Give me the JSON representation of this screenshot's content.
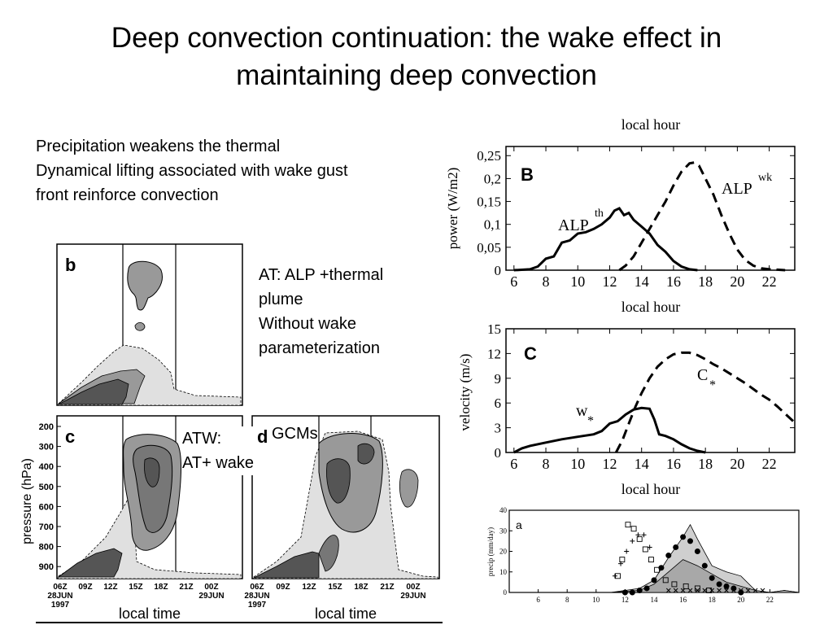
{
  "slide": {
    "title_line1": "Deep convection continuation: the wake effect in",
    "title_line2": "maintaining deep convection",
    "bullets": [
      "Precipitation weakens the thermal",
      "Dynamical lifting associated with wake gust",
      "front reinforce convection"
    ],
    "at_note": [
      "AT: ALP +thermal",
      "plume",
      "Without wake",
      "parameterization"
    ],
    "atw_note": [
      "ATW:",
      "AT+ wake"
    ],
    "gcms_note": "GCMs"
  },
  "colors": {
    "dark_fill": "#555555",
    "mid_fill": "#999999",
    "light_fill": "#d2d2d2",
    "ink": "#000000"
  },
  "chart_data": [
    {
      "id": "panel-b-cross-section",
      "type": "heatmap",
      "panel_label": "b"
    },
    {
      "id": "panel-c-cross-section",
      "type": "heatmap",
      "panel_label": "c",
      "ylabel": "pressure  (hPa)",
      "yticks": [
        "200",
        "300",
        "400",
        "500",
        "600",
        "700",
        "800",
        "900"
      ],
      "xticks": [
        "06Z",
        "09Z",
        "12Z",
        "15Z",
        "18Z",
        "21Z",
        "00Z"
      ],
      "date_start": [
        "28JUN",
        "1997"
      ],
      "date_end": "29JUN",
      "xlabel": "local time"
    },
    {
      "id": "panel-d-cross-section",
      "type": "heatmap",
      "panel_label": "d",
      "xticks": [
        "06Z",
        "09Z",
        "12Z",
        "15Z",
        "18Z",
        "21Z",
        "00Z"
      ],
      "date_start": [
        "28JUN",
        "1997"
      ],
      "date_end": "29JUN",
      "xlabel": "local time"
    },
    {
      "id": "panel-B-power",
      "type": "line",
      "panel_label": "B",
      "top_axis_label": "local hour",
      "xlabel": "local hour",
      "ylabel": "power (W/m2)",
      "xlim": [
        5.5,
        23.6
      ],
      "ylim": [
        0,
        0.27
      ],
      "xticks": [
        "6",
        "8",
        "10",
        "12",
        "14",
        "16",
        "18",
        "20",
        "22"
      ],
      "yticks": [
        "0",
        "0,05",
        "0,1",
        "0,15",
        "0,2",
        "0,25"
      ],
      "series": [
        {
          "name": "ALP th",
          "label_main": "ALP",
          "label_sup": "th",
          "dash": false,
          "x": [
            6,
            7,
            7.5,
            8,
            8.5,
            9,
            9.5,
            10,
            10.5,
            11,
            11.5,
            12,
            12.3,
            12.6,
            12.9,
            13.2,
            13.5,
            14,
            14.5,
            15,
            15.5,
            16,
            16.5,
            17,
            17.5
          ],
          "y": [
            0,
            0.002,
            0.008,
            0.025,
            0.03,
            0.06,
            0.065,
            0.08,
            0.083,
            0.09,
            0.1,
            0.115,
            0.13,
            0.135,
            0.12,
            0.125,
            0.11,
            0.095,
            0.08,
            0.055,
            0.04,
            0.02,
            0.008,
            0.002,
            0
          ]
        },
        {
          "name": "ALP wk",
          "label_main": "ALP",
          "label_sup": "wk",
          "dash": true,
          "x": [
            12.6,
            13,
            13.5,
            14,
            14.5,
            15,
            15.5,
            16,
            16.5,
            17,
            17.3,
            17.6,
            18,
            18.5,
            19,
            19.5,
            20,
            20.5,
            21,
            21.5,
            22,
            22.5,
            23
          ],
          "y": [
            0,
            0.01,
            0.03,
            0.06,
            0.09,
            0.12,
            0.15,
            0.185,
            0.215,
            0.233,
            0.235,
            0.228,
            0.2,
            0.165,
            0.12,
            0.08,
            0.045,
            0.022,
            0.01,
            0.004,
            0.002,
            0.001,
            0
          ]
        }
      ]
    },
    {
      "id": "panel-C-velocity",
      "type": "line",
      "panel_label": "C",
      "xlabel": "local hour",
      "ylabel": "velocity (m/s)",
      "xlim": [
        5.5,
        23.6
      ],
      "ylim": [
        0,
        15
      ],
      "xticks": [
        "6",
        "8",
        "10",
        "12",
        "14",
        "16",
        "18",
        "20",
        "22"
      ],
      "yticks": [
        "0",
        "3",
        "6",
        "9",
        "12",
        "15"
      ],
      "series": [
        {
          "name": "w*",
          "label_main": "w",
          "label_sub": "*",
          "dash": false,
          "x": [
            6,
            6.5,
            7,
            8,
            9,
            10,
            11,
            11.5,
            12,
            12.5,
            13,
            13.5,
            14,
            14.5,
            14.8,
            15.1,
            15.5,
            16,
            16.5,
            17,
            17.5,
            18
          ],
          "y": [
            0,
            0.5,
            0.8,
            1.2,
            1.6,
            1.9,
            2.2,
            2.6,
            3.5,
            3.8,
            4.6,
            5.2,
            5.4,
            5.3,
            4.0,
            2.2,
            2.0,
            1.6,
            1.0,
            0.5,
            0.2,
            0
          ]
        },
        {
          "name": "C*",
          "label_main": "C",
          "label_sub": "*",
          "dash": true,
          "x": [
            12.4,
            12.8,
            13.2,
            13.6,
            14,
            14.5,
            15,
            15.5,
            16,
            16.5,
            17,
            17.5,
            18,
            18.5,
            19,
            19.5,
            20,
            20.5,
            21,
            21.5,
            22,
            22.5,
            23,
            23.5
          ],
          "y": [
            0,
            1.5,
            3.5,
            5.5,
            7.2,
            9,
            10.4,
            11.3,
            11.9,
            12.1,
            12.1,
            11.8,
            11.3,
            10.7,
            10.2,
            9.6,
            9,
            8.4,
            7.7,
            7,
            6.4,
            5.6,
            4.7,
            3.8
          ]
        }
      ]
    },
    {
      "id": "panel-a-precip",
      "type": "line",
      "panel_label": "a",
      "ylabel": "precip (mm/day)",
      "xlim": [
        4,
        24
      ],
      "ylim": [
        0,
        40
      ],
      "xticks": [
        "6",
        "8",
        "10",
        "12",
        "14",
        "16",
        "18",
        "20",
        "22"
      ],
      "yticks": [
        "0",
        "10",
        "20",
        "30",
        "40"
      ],
      "area_upper": {
        "x": [
          4,
          11,
          12,
          13,
          14,
          15,
          16,
          16.5,
          17,
          18,
          19,
          20,
          21,
          22,
          23,
          24
        ],
        "y": [
          0,
          0,
          1,
          2,
          6,
          17,
          27,
          33,
          26,
          13,
          10,
          8,
          1,
          0,
          1,
          0
        ]
      },
      "area_lower": {
        "x": [
          4,
          11,
          12,
          13,
          14,
          15,
          16,
          17,
          18,
          19,
          20,
          21,
          22,
          23,
          24
        ],
        "y": [
          0,
          0,
          0.5,
          1,
          4,
          10,
          16,
          13,
          9,
          5,
          3,
          1,
          0,
          1,
          0
        ]
      },
      "markers": [
        {
          "symbol": "circle",
          "x": [
            12,
            12.5,
            13,
            13.5,
            14,
            14.5,
            15,
            15.5,
            16,
            16.5,
            17,
            17.5,
            18,
            18.5,
            19,
            19.5,
            20
          ],
          "y": [
            0,
            0,
            1,
            2,
            6,
            12,
            18,
            22,
            27,
            25,
            20,
            13,
            7,
            4,
            3,
            2,
            0
          ]
        },
        {
          "symbol": "square",
          "x": [
            11.5,
            11.8,
            12.2,
            12.6,
            13,
            13.4,
            13.8,
            14.2,
            14.8,
            15.4,
            16.2,
            17,
            17.8
          ],
          "y": [
            8,
            16,
            33,
            31,
            26,
            21,
            16,
            11,
            6,
            4,
            3,
            2,
            1
          ]
        },
        {
          "symbol": "plus",
          "x": [
            11.3,
            11.7,
            12.1,
            12.5,
            12.9,
            13.3,
            13.7
          ],
          "y": [
            8,
            14,
            20,
            25,
            28,
            28,
            22
          ]
        },
        {
          "symbol": "x",
          "x": [
            15,
            15.5,
            16,
            16.5,
            17,
            17.5,
            18,
            18.5,
            19,
            19.5,
            20,
            20.5,
            21,
            21.5
          ],
          "y": [
            1,
            1,
            1,
            1,
            1,
            1,
            1,
            1,
            1,
            1,
            1,
            1,
            1,
            1
          ]
        }
      ]
    }
  ]
}
